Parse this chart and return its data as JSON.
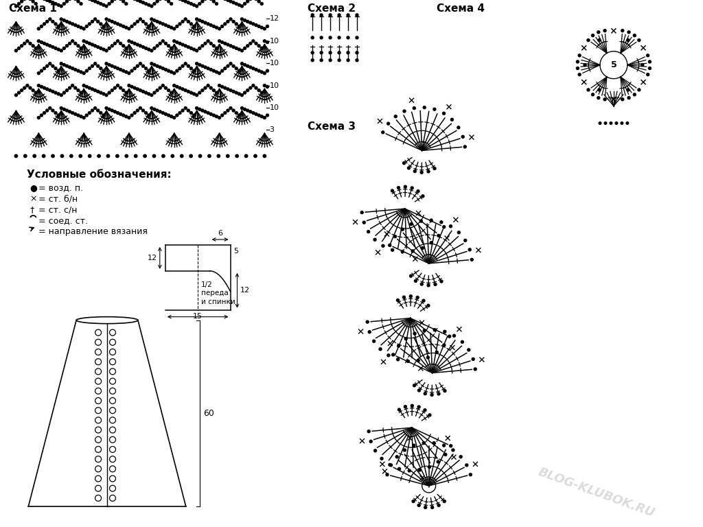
{
  "bg_color": "#ffffff",
  "schema1_title": "Схема 1",
  "schema2_title": "Схема 2",
  "schema3_title": "Схема 3",
  "schema4_title": "Схема 4",
  "legend_title": "Условные обозначения:",
  "row_numbers": [
    12,
    10,
    10,
    10,
    10,
    3
  ],
  "watermark": "BLOG-KLUBOK.RU",
  "bodice_text": "1/2\nпереда\nи спинки"
}
